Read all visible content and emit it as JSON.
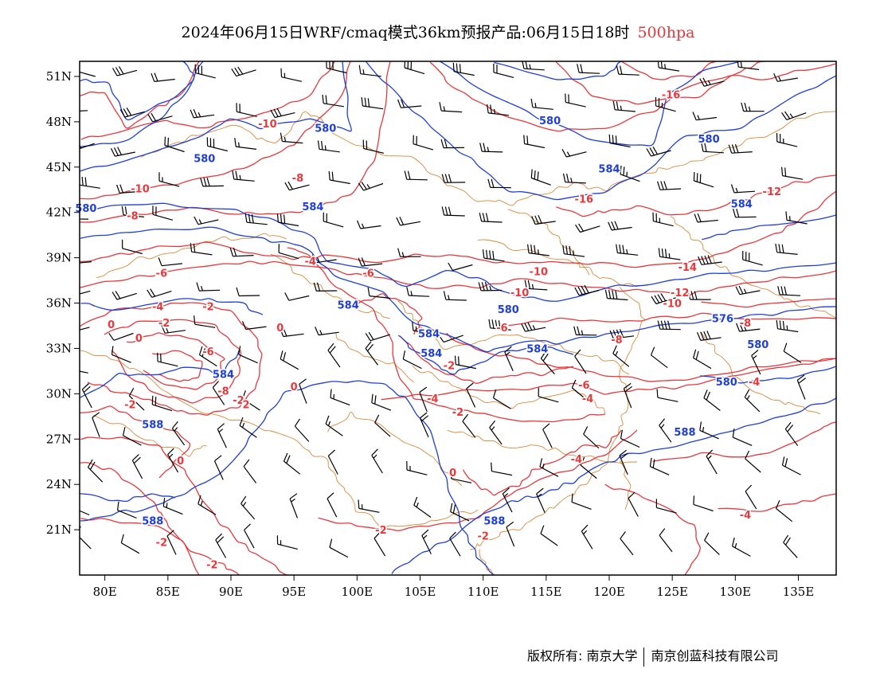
{
  "title": {
    "main": "2024年06月15日WRF/cmaq模式36km预报产品:06月15日18时",
    "level": "500hpa"
  },
  "axes": {
    "x_ticks": [
      "80E",
      "85E",
      "90E",
      "95E",
      "100E",
      "105E",
      "110E",
      "115E",
      "120E",
      "125E",
      "130E",
      "135E"
    ],
    "y_ticks": [
      "51N",
      "48N",
      "45N",
      "42N",
      "39N",
      "36N",
      "33N",
      "30N",
      "27N",
      "24N",
      "21N"
    ]
  },
  "colors": {
    "height_contour": "#1f3fd8",
    "temp_contour": "#e8383b",
    "boundary": "#d9893a",
    "wind_barb": "#000000"
  },
  "chart_data": {
    "type": "map",
    "lon_range": [
      78,
      138
    ],
    "lat_range": [
      18,
      52
    ],
    "height_labels": [
      {
        "text": "588",
        "lon": 83.8,
        "lat": 28.0
      },
      {
        "text": "588",
        "lon": 83.8,
        "lat": 21.6
      },
      {
        "text": "588",
        "lon": 110.9,
        "lat": 21.6
      },
      {
        "text": "588",
        "lon": 126.0,
        "lat": 27.5
      },
      {
        "text": "584",
        "lon": 89.4,
        "lat": 31.3
      },
      {
        "text": "584",
        "lon": 96.5,
        "lat": 42.4
      },
      {
        "text": "584",
        "lon": 99.3,
        "lat": 35.9
      },
      {
        "text": "584",
        "lon": 105.7,
        "lat": 34.0
      },
      {
        "text": "584",
        "lon": 105.9,
        "lat": 32.7
      },
      {
        "text": "584",
        "lon": 114.3,
        "lat": 33.0
      },
      {
        "text": "584",
        "lon": 120.0,
        "lat": 44.9
      },
      {
        "text": "584",
        "lon": 130.5,
        "lat": 42.6
      },
      {
        "text": "580",
        "lon": 87.9,
        "lat": 45.6
      },
      {
        "text": "580",
        "lon": 97.5,
        "lat": 47.6
      },
      {
        "text": "580",
        "lon": 78.5,
        "lat": 42.3
      },
      {
        "text": "580",
        "lon": 112.0,
        "lat": 35.6
      },
      {
        "text": "580",
        "lon": 115.3,
        "lat": 48.1
      },
      {
        "text": "580",
        "lon": 131.8,
        "lat": 33.3
      },
      {
        "text": "580",
        "lon": 129.3,
        "lat": 30.8
      },
      {
        "text": "576",
        "lon": 129.0,
        "lat": 35.0
      },
      {
        "text": "580",
        "lon": 127.9,
        "lat": 46.9
      }
    ],
    "temp_labels": [
      {
        "text": "-16",
        "lon": 124.9,
        "lat": 49.8
      },
      {
        "text": "-16",
        "lon": 118.0,
        "lat": 42.9
      },
      {
        "text": "-14",
        "lon": 126.2,
        "lat": 38.4
      },
      {
        "text": "-12",
        "lon": 132.9,
        "lat": 43.4
      },
      {
        "text": "-12",
        "lon": 125.6,
        "lat": 36.7
      },
      {
        "text": "-10",
        "lon": 82.8,
        "lat": 43.6
      },
      {
        "text": "-10",
        "lon": 114.4,
        "lat": 38.1
      },
      {
        "text": "-10",
        "lon": 112.9,
        "lat": 36.7
      },
      {
        "text": "-10",
        "lon": 125.0,
        "lat": 36.0
      },
      {
        "text": "-10",
        "lon": 92.9,
        "lat": 47.9
      },
      {
        "text": "-8",
        "lon": 95.3,
        "lat": 44.3
      },
      {
        "text": "-8",
        "lon": 82.2,
        "lat": 41.8
      },
      {
        "text": "-8",
        "lon": 89.4,
        "lat": 30.2
      },
      {
        "text": "-8",
        "lon": 120.6,
        "lat": 33.6
      },
      {
        "text": "-8",
        "lon": 130.8,
        "lat": 34.7
      },
      {
        "text": "-6",
        "lon": 84.5,
        "lat": 38.0
      },
      {
        "text": "-6",
        "lon": 100.9,
        "lat": 38.0
      },
      {
        "text": "-6",
        "lon": 88.2,
        "lat": 32.8
      },
      {
        "text": "-6",
        "lon": 118.0,
        "lat": 30.6
      },
      {
        "text": "-6",
        "lon": 111.5,
        "lat": 34.4
      },
      {
        "text": "-4",
        "lon": 96.3,
        "lat": 38.8
      },
      {
        "text": "-4",
        "lon": 84.2,
        "lat": 35.8
      },
      {
        "text": "-4",
        "lon": 106.0,
        "lat": 29.7
      },
      {
        "text": "-4",
        "lon": 118.3,
        "lat": 29.7
      },
      {
        "text": "-4",
        "lon": 117.4,
        "lat": 25.7
      },
      {
        "text": "-4",
        "lon": 131.5,
        "lat": 30.8
      },
      {
        "text": "-4",
        "lon": 130.8,
        "lat": 22.0
      },
      {
        "text": "-2",
        "lon": 88.2,
        "lat": 35.8
      },
      {
        "text": "-2",
        "lon": 108.0,
        "lat": 28.8
      },
      {
        "text": "-2",
        "lon": 107.3,
        "lat": 31.9
      },
      {
        "text": "-2",
        "lon": 101.9,
        "lat": 21.0
      },
      {
        "text": "-2",
        "lon": 84.5,
        "lat": 20.2
      },
      {
        "text": "-2",
        "lon": 88.5,
        "lat": 18.7
      },
      {
        "text": "-2",
        "lon": 110.0,
        "lat": 20.6
      },
      {
        "text": "-2",
        "lon": 84.7,
        "lat": 34.7
      },
      {
        "text": "0",
        "lon": 80.5,
        "lat": 34.6
      },
      {
        "text": "0",
        "lon": 82.7,
        "lat": 33.7
      },
      {
        "text": "0",
        "lon": 93.9,
        "lat": 34.4
      },
      {
        "text": "0",
        "lon": 95.0,
        "lat": 30.5
      },
      {
        "text": "0",
        "lon": 86.0,
        "lat": 25.6
      },
      {
        "text": "0",
        "lon": 107.6,
        "lat": 24.8
      },
      {
        "text": "-2",
        "lon": 82.0,
        "lat": 29.3
      },
      {
        "text": "-2",
        "lon": 90.6,
        "lat": 29.6
      },
      {
        "text": "2",
        "lon": 91.2,
        "lat": 29.3
      }
    ]
  },
  "footer": {
    "copyright": "版权所有: 南京大学",
    "company": "南京创蓝科技有限公司"
  }
}
